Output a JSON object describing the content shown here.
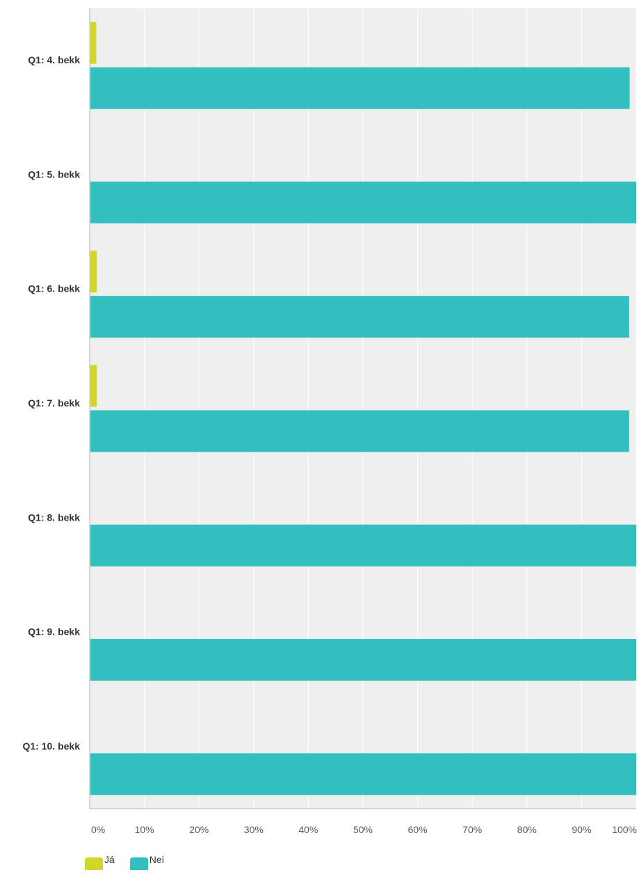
{
  "chart_data": {
    "type": "bar",
    "orientation": "horizontal",
    "stacked": false,
    "categories": [
      "Q1: 4. bekk",
      "Q1: 5. bekk",
      "Q1: 6. bekk",
      "Q1: 7. bekk",
      "Q1: 8. bekk",
      "Q1: 9. bekk",
      "Q1: 10. bekk"
    ],
    "series": [
      {
        "name": "Já",
        "color": "#d0d62b",
        "values": [
          1.2,
          0,
          1.3,
          1.3,
          0,
          0,
          0
        ]
      },
      {
        "name": "Nei",
        "color": "#33bec0",
        "values": [
          98.8,
          100,
          98.7,
          98.7,
          100,
          100,
          100
        ]
      }
    ],
    "x_ticks": [
      "0%",
      "10%",
      "20%",
      "30%",
      "40%",
      "50%",
      "60%",
      "70%",
      "80%",
      "90%",
      "100%"
    ],
    "xlim": [
      0,
      100
    ],
    "grid": true,
    "legend_position": "bottom-left",
    "background_color": "#efefef"
  }
}
